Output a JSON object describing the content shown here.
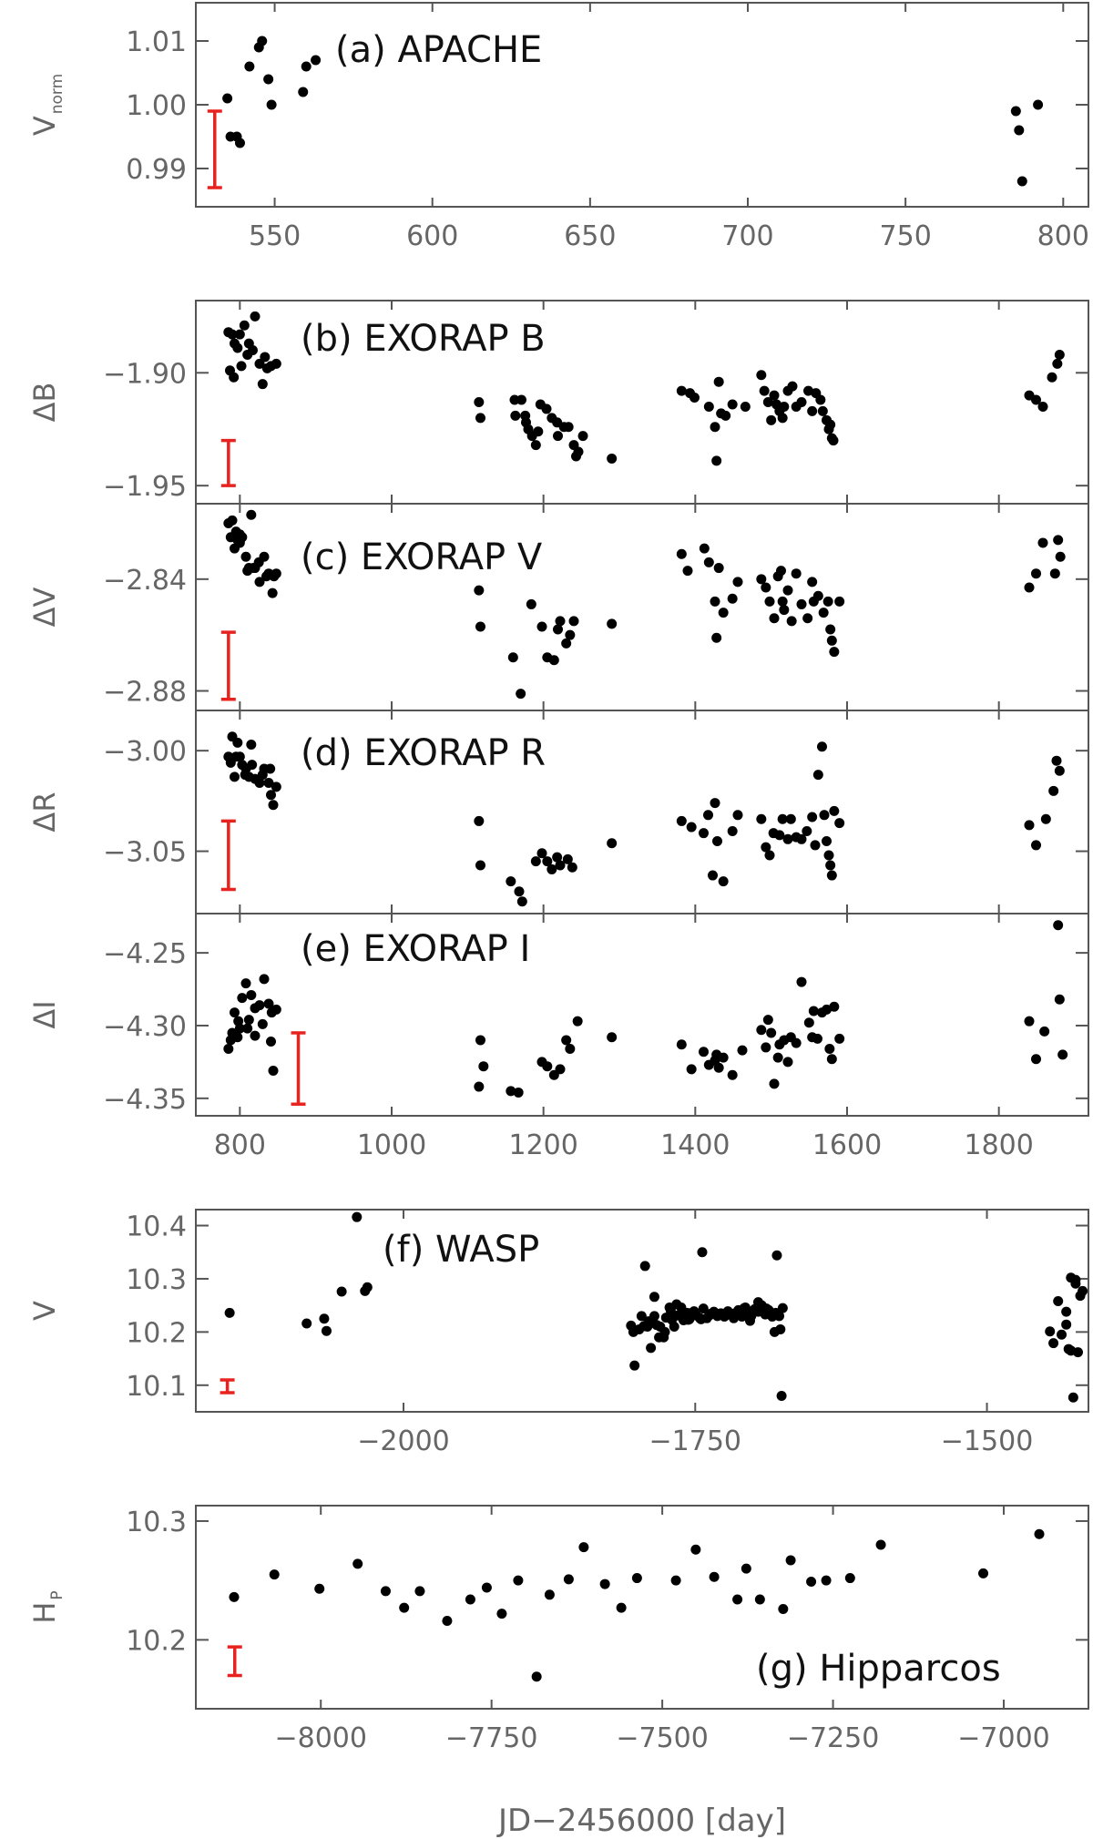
{
  "colors": {
    "points": "#000000",
    "error_bar": "#e8231f",
    "axes": "#555555"
  },
  "chart_data": [
    {
      "type": "scatter",
      "ylabel": "V",
      "ylabel_sub": "norm",
      "annotation": "(a) APACHE",
      "xlim": [
        525,
        808
      ],
      "ylim": [
        0.984,
        1.016
      ],
      "xticks": [
        550,
        600,
        650,
        700,
        750,
        800
      ],
      "xtick_labels": [
        "550",
        "600",
        "650",
        "700",
        "750",
        "800"
      ],
      "yticks": [
        0.99,
        1.0,
        1.01
      ],
      "ytick_labels": [
        "0.99",
        "1.00",
        "1.01"
      ],
      "error_bar": {
        "x": 531,
        "y_low": 0.987,
        "y_high": 0.999
      },
      "x": [
        535,
        536,
        538,
        539,
        542,
        545,
        546,
        548,
        549,
        559,
        560,
        563,
        785,
        786,
        787,
        792
      ],
      "y": [
        1.001,
        0.995,
        0.995,
        0.994,
        1.006,
        1.009,
        1.01,
        1.004,
        1.0,
        1.002,
        1.006,
        1.007,
        0.999,
        0.996,
        0.988,
        1.0
      ]
    },
    {
      "type": "scatter",
      "ylabel": "ΔB",
      "annotation": "(b) EXORAP B",
      "xlim": [
        742,
        1918
      ],
      "ylim": [
        -1.958,
        -1.868
      ],
      "xticks": [
        800,
        1000,
        1200,
        1400,
        1600,
        1800
      ],
      "xtick_labels": [],
      "yticks": [
        -1.9,
        -1.95
      ],
      "ytick_labels": [
        "−1.90",
        "−1.95"
      ],
      "error_bar": {
        "x": 785,
        "y_low": -1.95,
        "y_high": -1.93
      },
      "x": [
        785,
        790,
        793,
        797,
        800,
        806,
        812,
        817,
        820,
        826,
        833,
        836,
        841,
        848,
        787,
        792,
        802,
        810,
        830,
        1115,
        1117,
        1162,
        1163,
        1171,
        1176,
        1177,
        1180,
        1185,
        1190,
        1193,
        1196,
        1204,
        1211,
        1218,
        1219,
        1227,
        1233,
        1240,
        1243,
        1246,
        1252,
        1290,
        1382,
        1393,
        1399,
        1418,
        1426,
        1428,
        1431,
        1434,
        1440,
        1449,
        1466,
        1487,
        1491,
        1496,
        1500,
        1504,
        1507,
        1511,
        1515,
        1517,
        1522,
        1528,
        1533,
        1540,
        1549,
        1554,
        1559,
        1565,
        1568,
        1573,
        1576,
        1578,
        1580,
        1582,
        1840,
        1849,
        1858,
        1870,
        1877,
        1880
      ],
      "y": [
        -1.882,
        -1.883,
        -1.887,
        -1.889,
        -1.883,
        -1.879,
        -1.887,
        -1.89,
        -1.875,
        -1.896,
        -1.893,
        -1.898,
        -1.897,
        -1.896,
        -1.899,
        -1.902,
        -1.897,
        -1.892,
        -1.905,
        -1.913,
        -1.92,
        -1.912,
        -1.919,
        -1.912,
        -1.919,
        -1.922,
        -1.925,
        -1.928,
        -1.932,
        -1.926,
        -1.914,
        -1.916,
        -1.92,
        -1.922,
        -1.928,
        -1.924,
        -1.924,
        -1.932,
        -1.937,
        -1.935,
        -1.928,
        -1.938,
        -1.908,
        -1.909,
        -1.911,
        -1.915,
        -1.924,
        -1.939,
        -1.904,
        -1.918,
        -1.919,
        -1.914,
        -1.915,
        -1.901,
        -1.908,
        -1.913,
        -1.921,
        -1.91,
        -1.914,
        -1.917,
        -1.92,
        -1.915,
        -1.908,
        -1.906,
        -1.915,
        -1.913,
        -1.908,
        -1.917,
        -1.909,
        -1.912,
        -1.917,
        -1.921,
        -1.925,
        -1.923,
        -1.929,
        -1.93,
        -1.91,
        -1.912,
        -1.915,
        -1.902,
        -1.896,
        -1.892
      ]
    },
    {
      "type": "scatter",
      "ylabel": "ΔV",
      "annotation": "(c) EXORAP V",
      "xlim": [
        742,
        1918
      ],
      "ylim": [
        -2.887,
        -2.813
      ],
      "xticks": [
        800,
        1000,
        1200,
        1400,
        1600,
        1800
      ],
      "xtick_labels": [],
      "yticks": [
        -2.84,
        -2.88
      ],
      "ytick_labels": [
        "−2.84",
        "−2.88"
      ],
      "error_bar": {
        "x": 785,
        "y_low": -2.883,
        "y_high": -2.859
      },
      "x": [
        785,
        790,
        793,
        797,
        800,
        803,
        808,
        812,
        815,
        820,
        826,
        832,
        838,
        843,
        845,
        848,
        788,
        795,
        800,
        810,
        818,
        825,
        835,
        1115,
        1117,
        1160,
        1170,
        1184,
        1198,
        1205,
        1214,
        1219,
        1222,
        1230,
        1235,
        1240,
        1290,
        1382,
        1390,
        1412,
        1418,
        1426,
        1428,
        1431,
        1437,
        1449,
        1456,
        1487,
        1493,
        1498,
        1504,
        1509,
        1513,
        1515,
        1517,
        1522,
        1527,
        1533,
        1540,
        1548,
        1554,
        1556,
        1562,
        1569,
        1575,
        1578,
        1580,
        1583,
        1590,
        1840,
        1849,
        1858,
        1874,
        1878,
        1881
      ],
      "y": [
        -2.82,
        -2.819,
        -2.829,
        -2.826,
        -2.824,
        -2.825,
        -2.832,
        -2.836,
        -2.817,
        -2.836,
        -2.841,
        -2.832,
        -2.838,
        -2.845,
        -2.839,
        -2.838,
        -2.825,
        -2.823,
        -2.827,
        -2.837,
        -2.836,
        -2.834,
        -2.839,
        -2.844,
        -2.857,
        -2.868,
        -2.881,
        -2.849,
        -2.857,
        -2.868,
        -2.869,
        -2.858,
        -2.855,
        -2.863,
        -2.86,
        -2.855,
        -2.856,
        -2.831,
        -2.837,
        -2.829,
        -2.834,
        -2.848,
        -2.861,
        -2.836,
        -2.852,
        -2.847,
        -2.841,
        -2.84,
        -2.843,
        -2.848,
        -2.854,
        -2.839,
        -2.837,
        -2.848,
        -2.851,
        -2.844,
        -2.855,
        -2.838,
        -2.849,
        -2.854,
        -2.841,
        -2.848,
        -2.846,
        -2.852,
        -2.848,
        -2.858,
        -2.862,
        -2.866,
        -2.848,
        -2.843,
        -2.838,
        -2.827,
        -2.838,
        -2.826,
        -2.832
      ]
    },
    {
      "type": "scatter",
      "ylabel": "ΔR",
      "annotation": "(d) EXORAP R",
      "xlim": [
        742,
        1918
      ],
      "ylim": [
        -3.081,
        -2.98
      ],
      "xticks": [
        800,
        1000,
        1200,
        1400,
        1600,
        1800
      ],
      "xtick_labels": [],
      "yticks": [
        -3.0,
        -3.05
      ],
      "ytick_labels": [
        "−3.00",
        "−3.05"
      ],
      "error_bar": {
        "x": 785,
        "y_low": -3.069,
        "y_high": -3.035
      },
      "x": [
        785,
        790,
        793,
        797,
        800,
        803,
        808,
        812,
        815,
        820,
        826,
        832,
        838,
        841,
        844,
        848,
        788,
        795,
        807,
        816,
        830,
        840,
        1115,
        1117,
        1157,
        1168,
        1172,
        1190,
        1198,
        1205,
        1211,
        1218,
        1222,
        1232,
        1238,
        1290,
        1382,
        1395,
        1411,
        1417,
        1423,
        1426,
        1429,
        1437,
        1449,
        1456,
        1487,
        1493,
        1498,
        1503,
        1511,
        1515,
        1522,
        1526,
        1533,
        1540,
        1547,
        1554,
        1558,
        1562,
        1567,
        1570,
        1573,
        1576,
        1578,
        1580,
        1583,
        1590,
        1840,
        1849,
        1862,
        1872,
        1876,
        1880
      ],
      "y": [
        -3.003,
        -2.993,
        -3.013,
        -2.996,
        -3.003,
        -3.007,
        -3.009,
        -3.013,
        -2.997,
        -3.014,
        -3.016,
        -3.009,
        -3.016,
        -3.022,
        -3.027,
        -3.018,
        -3.006,
        -3.003,
        -3.012,
        -3.007,
        -3.012,
        -3.009,
        -3.035,
        -3.057,
        -3.065,
        -3.07,
        -3.075,
        -3.055,
        -3.051,
        -3.055,
        -3.059,
        -3.053,
        -3.057,
        -3.054,
        -3.058,
        -3.046,
        -3.035,
        -3.038,
        -3.041,
        -3.032,
        -3.062,
        -3.026,
        -3.045,
        -3.065,
        -3.04,
        -3.032,
        -3.034,
        -3.048,
        -3.052,
        -3.041,
        -3.042,
        -3.034,
        -3.044,
        -3.034,
        -3.043,
        -3.044,
        -3.04,
        -3.033,
        -3.047,
        -3.012,
        -2.998,
        -3.032,
        -3.045,
        -3.052,
        -3.057,
        -3.062,
        -3.03,
        -3.036,
        -3.037,
        -3.047,
        -3.034,
        -3.02,
        -3.005,
        -3.01
      ]
    },
    {
      "type": "scatter",
      "ylabel": "ΔI",
      "annotation": "(e) EXORAP I",
      "xlim": [
        742,
        1918
      ],
      "ylim": [
        -4.362,
        -4.223
      ],
      "xticks": [
        800,
        1000,
        1200,
        1400,
        1600,
        1800
      ],
      "xtick_labels": [
        "800",
        "1000",
        "1200",
        "1400",
        "1600",
        "1800"
      ],
      "yticks": [
        -4.25,
        -4.3,
        -4.35
      ],
      "ytick_labels": [
        "−4.25",
        "−4.30",
        "−4.35"
      ],
      "error_bar": {
        "x": 877,
        "y_low": -4.354,
        "y_high": -4.305
      },
      "x": [
        785,
        790,
        793,
        797,
        800,
        803,
        808,
        812,
        815,
        820,
        826,
        832,
        838,
        841,
        844,
        848,
        788,
        798,
        810,
        820,
        830,
        842,
        1115,
        1117,
        1121,
        1157,
        1167,
        1198,
        1205,
        1214,
        1222,
        1230,
        1235,
        1245,
        1290,
        1382,
        1395,
        1411,
        1418,
        1426,
        1428,
        1431,
        1437,
        1449,
        1462,
        1487,
        1493,
        1496,
        1500,
        1504,
        1509,
        1511,
        1517,
        1522,
        1526,
        1533,
        1540,
        1550,
        1554,
        1556,
        1561,
        1567,
        1573,
        1577,
        1580,
        1583,
        1590,
        1840,
        1849,
        1860,
        1878,
        1880,
        1884
      ],
      "y": [
        -4.316,
        -4.305,
        -4.291,
        -4.308,
        -4.302,
        -4.281,
        -4.271,
        -4.296,
        -4.279,
        -4.288,
        -4.286,
        -4.268,
        -4.285,
        -4.311,
        -4.331,
        -4.289,
        -4.31,
        -4.297,
        -4.302,
        -4.307,
        -4.299,
        -4.291,
        -4.342,
        -4.31,
        -4.328,
        -4.345,
        -4.346,
        -4.325,
        -4.328,
        -4.334,
        -4.33,
        -4.31,
        -4.316,
        -4.297,
        -4.308,
        -4.313,
        -4.33,
        -4.318,
        -4.327,
        -4.324,
        -4.32,
        -4.329,
        -4.322,
        -4.334,
        -4.317,
        -4.303,
        -4.315,
        -4.296,
        -4.305,
        -4.34,
        -4.322,
        -4.313,
        -4.31,
        -4.325,
        -4.308,
        -4.312,
        -4.27,
        -4.298,
        -4.308,
        -4.29,
        -4.309,
        -4.291,
        -4.289,
        -4.316,
        -4.323,
        -4.287,
        -4.309,
        -4.297,
        -4.323,
        -4.304,
        -4.231,
        -4.282,
        -4.32
      ]
    },
    {
      "type": "scatter",
      "ylabel": "V",
      "annotation": "(f) WASP",
      "xlim": [
        -2178,
        -1413
      ],
      "ylim": [
        10.05,
        10.43
      ],
      "xticks": [
        -2000,
        -1750,
        -1500
      ],
      "xtick_labels": [
        "−2000",
        "−1750",
        "−1500"
      ],
      "yticks": [
        10.1,
        10.2,
        10.3,
        10.4
      ],
      "ytick_labels": [
        "10.1",
        "10.2",
        "10.3",
        "10.4"
      ],
      "error_bar": {
        "x": -2151,
        "y_low": 10.086,
        "y_high": 10.11
      },
      "x": [
        -2149,
        -2083,
        -2068,
        -2066,
        -2053,
        -2040,
        -2033,
        -2031,
        -1805,
        -1802,
        -1798,
        -1794,
        -1790,
        -1788,
        -1785,
        -1783,
        -1780,
        -1777,
        -1775,
        -1772,
        -1770,
        -1768,
        -1765,
        -1762,
        -1760,
        -1757,
        -1755,
        -1752,
        -1749,
        -1746,
        -1743,
        -1740,
        -1737,
        -1734,
        -1731,
        -1728,
        -1725,
        -1722,
        -1719,
        -1716,
        -1713,
        -1710,
        -1707,
        -1705,
        -1702,
        -1699,
        -1696,
        -1693,
        -1690,
        -1687,
        -1684,
        -1681,
        -1678,
        -1675,
        -1803,
        -1796,
        -1791,
        -1786,
        -1781,
        -1776,
        -1771,
        -1766,
        -1761,
        -1756,
        -1751,
        -1745,
        -1738,
        -1731,
        -1724,
        -1717,
        -1710,
        -1703,
        -1696,
        -1689,
        -1682,
        -1793,
        -1785,
        -1744,
        -1708,
        -1680,
        -1677,
        -1676,
        -1446,
        -1443,
        -1439,
        -1436,
        -1432,
        -1430,
        -1428,
        -1426,
        -1424,
        -1422,
        -1420,
        -1418,
        -1432,
        -1428,
        -1424
      ],
      "y": [
        10.236,
        10.216,
        10.225,
        10.202,
        10.276,
        10.416,
        10.277,
        10.284,
        10.212,
        10.137,
        10.205,
        10.211,
        10.22,
        10.17,
        10.23,
        10.213,
        10.21,
        10.19,
        10.227,
        10.246,
        10.223,
        10.21,
        10.231,
        10.246,
        10.222,
        10.236,
        10.224,
        10.237,
        10.231,
        10.226,
        10.244,
        10.226,
        10.234,
        10.238,
        10.231,
        10.235,
        10.229,
        10.239,
        10.232,
        10.235,
        10.241,
        10.229,
        10.246,
        10.236,
        10.23,
        10.243,
        10.238,
        10.25,
        10.233,
        10.241,
        10.229,
        10.236,
        10.23,
        10.245,
        10.2,
        10.23,
        10.21,
        10.217,
        10.19,
        10.2,
        10.24,
        10.252,
        10.236,
        10.223,
        10.239,
        10.224,
        10.231,
        10.23,
        10.231,
        10.226,
        10.234,
        10.221,
        10.256,
        10.244,
        10.2,
        10.324,
        10.266,
        10.35,
        10.245,
        10.344,
        10.205,
        10.08,
        10.201,
        10.179,
        10.258,
        10.195,
        10.238,
        10.168,
        10.302,
        10.077,
        10.298,
        10.162,
        10.268,
        10.277,
        10.214,
        10.165,
        10.291
      ]
    },
    {
      "type": "scatter",
      "ylabel": "H",
      "ylabel_sub": "P",
      "annotation": "(g) Hipparcos",
      "xlabel": "JD−2456000 [day]",
      "xlim": [
        -8183,
        -6876
      ],
      "ylim": [
        10.142,
        10.313
      ],
      "xticks": [
        -8000,
        -7750,
        -7500,
        -7250,
        -7000
      ],
      "xtick_labels": [
        "−8000",
        "−7750",
        "−7500",
        "−7250",
        "−7000"
      ],
      "yticks": [
        10.2,
        10.3
      ],
      "ytick_labels": [
        "10.2",
        "10.3"
      ],
      "error_bar": {
        "x": -8126,
        "y_low": 10.17,
        "y_high": 10.194
      },
      "x": [
        -8127,
        -8068,
        -8002,
        -7946,
        -7905,
        -7878,
        -7855,
        -7815,
        -7781,
        -7757,
        -7735,
        -7711,
        -7684,
        -7665,
        -7637,
        -7615,
        -7584,
        -7560,
        -7537,
        -7480,
        -7451,
        -7424,
        -7390,
        -7377,
        -7357,
        -7323,
        -7312,
        -7282,
        -7260,
        -7225,
        -7180,
        -7030,
        -6948
      ],
      "y": [
        10.236,
        10.255,
        10.243,
        10.264,
        10.241,
        10.227,
        10.241,
        10.216,
        10.234,
        10.244,
        10.222,
        10.25,
        10.169,
        10.238,
        10.251,
        10.278,
        10.247,
        10.227,
        10.252,
        10.25,
        10.276,
        10.253,
        10.234,
        10.26,
        10.234,
        10.226,
        10.267,
        10.249,
        10.25,
        10.252,
        10.28,
        10.256,
        10.289
      ]
    }
  ]
}
